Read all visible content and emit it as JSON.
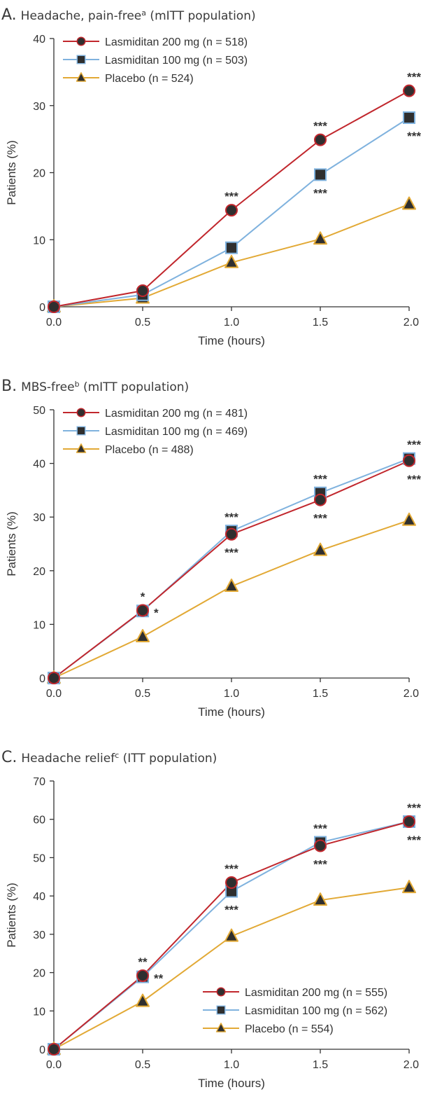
{
  "colors": {
    "lasmiditan_200": "#c1272d",
    "lasmiditan_100": "#7fb2de",
    "placebo": "#e2a935",
    "marker_fill": "#2f2f2f",
    "axis": "#333333"
  },
  "chart_data": [
    {
      "type": "line",
      "panel": "A.",
      "title": "Headache, pain-free",
      "title_sup": "a",
      "title_rest": " (mITT population)",
      "xlabel": "Time (hours)",
      "ylabel": "Patients (%)",
      "x": [
        0.0,
        0.5,
        1.0,
        1.5,
        2.0
      ],
      "x_tick_labels": [
        "0.0",
        "0.5",
        "1.0",
        "1.5",
        "2.0"
      ],
      "ylim": [
        0,
        40
      ],
      "y_ticks": [
        0,
        10,
        20,
        30,
        40
      ],
      "legend_position": "top-left",
      "series": [
        {
          "key": "lasmiditan_200",
          "name": "Lasmiditan 200 mg (n = 518)",
          "marker": "circle",
          "values": [
            0,
            2.4,
            14.4,
            24.9,
            32.2
          ]
        },
        {
          "key": "lasmiditan_100",
          "name": "Lasmiditan 100 mg (n = 503)",
          "marker": "square",
          "values": [
            0,
            1.8,
            8.8,
            19.7,
            28.2
          ]
        },
        {
          "key": "placebo",
          "name": "Placebo (n = 524)",
          "marker": "triangle",
          "values": [
            0,
            1.3,
            6.6,
            10.1,
            15.3
          ]
        }
      ],
      "annotations": [
        {
          "x": 1.0,
          "series": "lasmiditan_200",
          "placement": "above",
          "text": "***"
        },
        {
          "x": 1.5,
          "series": "lasmiditan_200",
          "placement": "above",
          "text": "***"
        },
        {
          "x": 1.5,
          "series": "lasmiditan_100",
          "placement": "below",
          "text": "***"
        },
        {
          "x": 2.0,
          "series": "lasmiditan_200",
          "placement": "above",
          "text": "***"
        },
        {
          "x": 2.0,
          "series": "lasmiditan_100",
          "placement": "below",
          "text": "***"
        }
      ]
    },
    {
      "type": "line",
      "panel": "B.",
      "title": "MBS-free",
      "title_sup": "b",
      "title_rest": " (mITT population)",
      "xlabel": "Time (hours)",
      "ylabel": "Patients (%)",
      "x": [
        0.0,
        0.5,
        1.0,
        1.5,
        2.0
      ],
      "x_tick_labels": [
        "0.0",
        "0.5",
        "1.0",
        "1.5",
        "2.0"
      ],
      "ylim": [
        0,
        50
      ],
      "y_ticks": [
        0,
        10,
        20,
        30,
        40,
        50
      ],
      "legend_position": "top-left",
      "series": [
        {
          "key": "lasmiditan_200",
          "name": "Lasmiditan 200 mg (n = 481)",
          "marker": "circle",
          "values": [
            0,
            12.6,
            26.8,
            33.2,
            40.5
          ]
        },
        {
          "key": "lasmiditan_100",
          "name": "Lasmiditan 100 mg (n = 469)",
          "marker": "square",
          "values": [
            0,
            12.5,
            27.4,
            34.5,
            40.9
          ]
        },
        {
          "key": "placebo",
          "name": "Placebo (n = 488)",
          "marker": "triangle",
          "values": [
            0,
            7.7,
            17.1,
            23.8,
            29.4
          ]
        }
      ],
      "annotations": [
        {
          "x": 0.5,
          "series": "lasmiditan_200",
          "placement": "above",
          "text": "*"
        },
        {
          "x": 0.5,
          "series": "lasmiditan_100",
          "placement": "right",
          "text": "*"
        },
        {
          "x": 1.0,
          "series": "lasmiditan_100",
          "placement": "above",
          "text": "***"
        },
        {
          "x": 1.0,
          "series": "lasmiditan_200",
          "placement": "below",
          "text": "***"
        },
        {
          "x": 1.5,
          "series": "lasmiditan_100",
          "placement": "above",
          "text": "***"
        },
        {
          "x": 1.5,
          "series": "lasmiditan_200",
          "placement": "below",
          "text": "***"
        },
        {
          "x": 2.0,
          "series": "lasmiditan_100",
          "placement": "above",
          "text": "***"
        },
        {
          "x": 2.0,
          "series": "lasmiditan_200",
          "placement": "below",
          "text": "***"
        }
      ]
    },
    {
      "type": "line",
      "panel": "C.",
      "title": "Headache relief",
      "title_sup": "c",
      "title_rest": " (ITT population)",
      "xlabel": "Time (hours)",
      "ylabel": "Patients (%)",
      "x": [
        0.0,
        0.5,
        1.0,
        1.5,
        2.0
      ],
      "x_tick_labels": [
        "0.0",
        "0.5",
        "1.0",
        "1.5",
        "2.0"
      ],
      "ylim": [
        0,
        70
      ],
      "y_ticks": [
        0,
        10,
        20,
        30,
        40,
        50,
        60,
        70
      ],
      "legend_position": "bottom-right",
      "series": [
        {
          "key": "lasmiditan_200",
          "name": "Lasmiditan 200 mg (n = 555)",
          "marker": "circle",
          "values": [
            0,
            19.2,
            43.5,
            53.1,
            59.4
          ]
        },
        {
          "key": "lasmiditan_100",
          "name": "Lasmiditan 100 mg (n = 562)",
          "marker": "square",
          "values": [
            0,
            18.9,
            41.2,
            54.0,
            59.4
          ]
        },
        {
          "key": "placebo",
          "name": "Placebo (n = 554)",
          "marker": "triangle",
          "values": [
            0,
            12.5,
            29.5,
            38.9,
            42.2
          ]
        }
      ],
      "annotations": [
        {
          "x": 0.5,
          "series": "lasmiditan_200",
          "placement": "above",
          "text": "**"
        },
        {
          "x": 0.5,
          "series": "lasmiditan_100",
          "placement": "right",
          "text": "**"
        },
        {
          "x": 1.0,
          "series": "lasmiditan_200",
          "placement": "above",
          "text": "***"
        },
        {
          "x": 1.0,
          "series": "lasmiditan_100",
          "placement": "below",
          "text": "***"
        },
        {
          "x": 1.5,
          "series": "lasmiditan_100",
          "placement": "above",
          "text": "***"
        },
        {
          "x": 1.5,
          "series": "lasmiditan_200",
          "placement": "below",
          "text": "***"
        },
        {
          "x": 2.0,
          "series": "lasmiditan_100",
          "placement": "above",
          "text": "***"
        },
        {
          "x": 2.0,
          "series": "lasmiditan_200",
          "placement": "below",
          "text": "***"
        }
      ]
    }
  ]
}
